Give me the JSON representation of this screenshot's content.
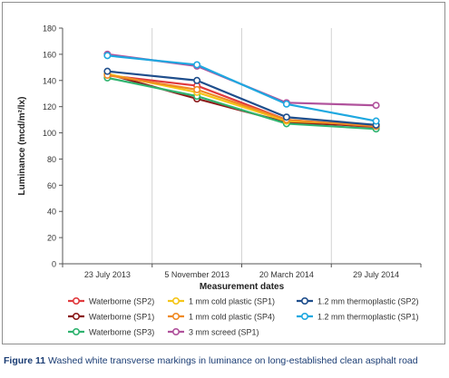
{
  "chart_data": {
    "type": "line",
    "categories": [
      "23 July 2013",
      "5 November 2013",
      "20 March 2014",
      "29 July 2014"
    ],
    "xlabel": "Measurement dates",
    "ylabel": "Luminance (mcd/m²/lx)",
    "ylim": [
      0,
      180
    ],
    "yticks": [
      0,
      20,
      40,
      60,
      80,
      100,
      120,
      140,
      160,
      180
    ],
    "grid": "vertical",
    "legend_position": "bottom",
    "series": [
      {
        "name": "Waterborne (SP2)",
        "color": "#e03a3e",
        "values": [
          144,
          136,
          110,
          104
        ]
      },
      {
        "name": "Waterborne (SP1)",
        "color": "#8b1a1a",
        "values": [
          145,
          126,
          108,
          105
        ]
      },
      {
        "name": "Waterborne (SP3)",
        "color": "#2fb36f",
        "values": [
          142,
          128,
          107,
          103
        ]
      },
      {
        "name": "1 mm cold plastic (SP1)",
        "color": "#f5c518",
        "values": [
          145,
          131,
          109,
          106
        ]
      },
      {
        "name": "1 mm cold plastic (SP4)",
        "color": "#f08a24",
        "values": [
          144,
          133,
          110,
          105
        ]
      },
      {
        "name": "3 mm screed (SP1)",
        "color": "#b0529c",
        "values": [
          160,
          151,
          123,
          121
        ]
      },
      {
        "name": "1.2 mm thermoplastic (SP2)",
        "color": "#1f4e8c",
        "values": [
          147,
          140,
          112,
          106
        ]
      },
      {
        "name": "1.2 mm thermoplastic (SP1)",
        "color": "#1ea8e0",
        "values": [
          159,
          152,
          122,
          109
        ]
      }
    ]
  },
  "caption": {
    "figure": "Figure 11",
    "text": "Washed white transverse markings in luminance on long-established clean asphalt road"
  }
}
